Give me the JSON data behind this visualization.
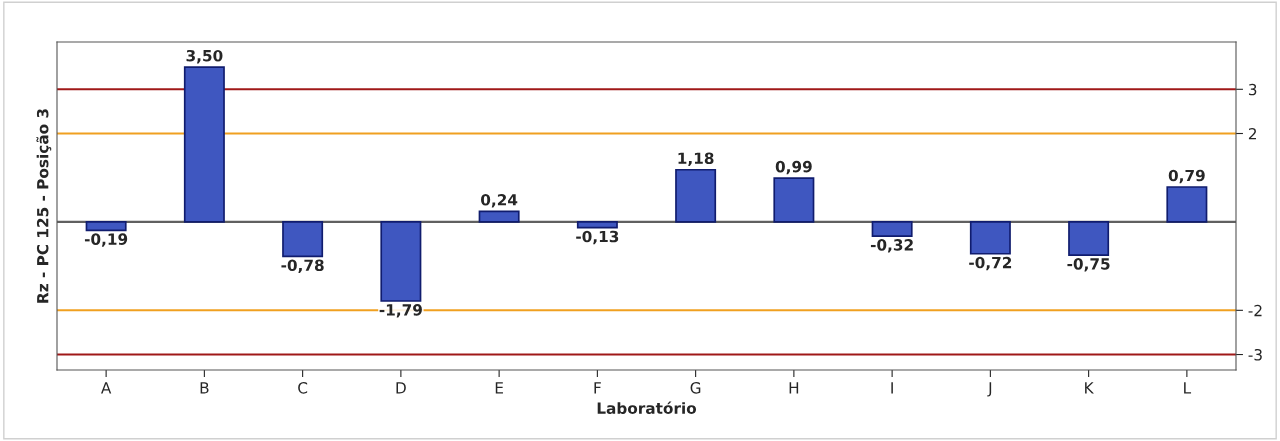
{
  "chart_data": {
    "type": "bar",
    "xlabel": "Laboratório",
    "ylabel": "Rz - PC 125 - Posição 3",
    "categories": [
      "A",
      "B",
      "C",
      "D",
      "E",
      "F",
      "G",
      "H",
      "I",
      "J",
      "K",
      "L"
    ],
    "values": [
      -0.19,
      3.5,
      -0.78,
      -1.79,
      0.24,
      -0.13,
      1.18,
      0.99,
      -0.32,
      -0.72,
      -0.75,
      0.79
    ],
    "value_labels": [
      "-0,19",
      "3,50",
      "-0,78",
      "-1,79",
      "0,24",
      "-0,13",
      "1,18",
      "0,99",
      "-0,32",
      "-0,72",
      "-0,75",
      "0,79"
    ],
    "color": "#3f57c0",
    "ylim": [
      -3.35,
      4.07
    ],
    "yticks": [
      -3,
      -2,
      2,
      3
    ],
    "ref_lines": [
      {
        "axis": "y",
        "value": 3,
        "color": "#a01818"
      },
      {
        "axis": "y",
        "value": 2,
        "color": "#f0a020"
      },
      {
        "axis": "y",
        "value": -2,
        "color": "#f0a020"
      },
      {
        "axis": "y",
        "value": -3,
        "color": "#a01818"
      },
      {
        "axis": "y",
        "value": 0,
        "color": "#606060"
      }
    ],
    "grid": false,
    "legend": false
  }
}
